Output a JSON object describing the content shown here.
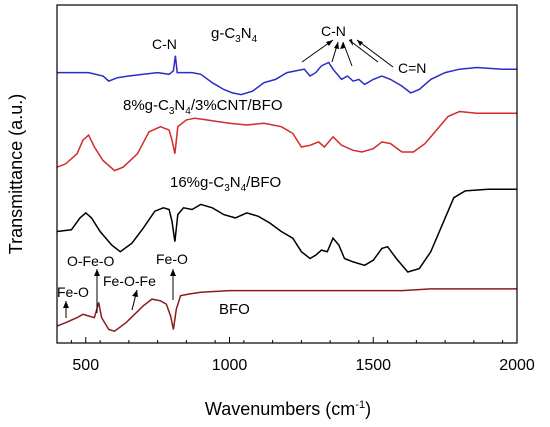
{
  "chart_data": {
    "type": "line",
    "xlabel": "Wavenumbers (cm",
    "xlabel_sup": "-1",
    "xlabel_tail": ")",
    "ylabel": "Transmittance (a.u.)",
    "xlim": [
      400,
      2000
    ],
    "x_ticks": [
      500,
      1000,
      1500,
      2000
    ],
    "x_tick_labels": [
      "500",
      "1000",
      "1500",
      "2000"
    ],
    "y_ticks_shown": false,
    "grid": false,
    "series": [
      {
        "name_parts": [
          [
            "g-C",
            false
          ],
          [
            "3",
            true
          ],
          [
            "N",
            false
          ],
          [
            "4",
            true
          ]
        ],
        "color": "#2b2bc8",
        "points": [
          [
            400,
            0.8
          ],
          [
            470,
            0.8
          ],
          [
            510,
            0.8
          ],
          [
            560,
            0.79
          ],
          [
            580,
            0.775
          ],
          [
            610,
            0.785
          ],
          [
            650,
            0.79
          ],
          [
            700,
            0.795
          ],
          [
            750,
            0.8
          ],
          [
            790,
            0.795
          ],
          [
            805,
            0.805
          ],
          [
            812,
            0.85
          ],
          [
            818,
            0.8
          ],
          [
            830,
            0.8
          ],
          [
            870,
            0.8
          ],
          [
            900,
            0.795
          ],
          [
            940,
            0.77
          ],
          [
            980,
            0.75
          ],
          [
            1010,
            0.74
          ],
          [
            1040,
            0.735
          ],
          [
            1080,
            0.745
          ],
          [
            1120,
            0.77
          ],
          [
            1160,
            0.78
          ],
          [
            1200,
            0.8
          ],
          [
            1230,
            0.805
          ],
          [
            1260,
            0.81
          ],
          [
            1280,
            0.79
          ],
          [
            1300,
            0.8
          ],
          [
            1320,
            0.82
          ],
          [
            1345,
            0.83
          ],
          [
            1360,
            0.81
          ],
          [
            1390,
            0.78
          ],
          [
            1410,
            0.79
          ],
          [
            1430,
            0.775
          ],
          [
            1450,
            0.78
          ],
          [
            1470,
            0.765
          ],
          [
            1500,
            0.78
          ],
          [
            1530,
            0.79
          ],
          [
            1560,
            0.78
          ],
          [
            1600,
            0.76
          ],
          [
            1630,
            0.74
          ],
          [
            1660,
            0.75
          ],
          [
            1700,
            0.78
          ],
          [
            1750,
            0.8
          ],
          [
            1800,
            0.81
          ],
          [
            1860,
            0.815
          ],
          [
            1950,
            0.81
          ],
          [
            2000,
            0.81
          ]
        ]
      },
      {
        "name_parts": [
          [
            "8%g-C",
            false
          ],
          [
            "3",
            true
          ],
          [
            "N",
            false
          ],
          [
            "4",
            true
          ],
          [
            "/3%CNT/BFO",
            false
          ]
        ],
        "color": "#d42a2a",
        "points": [
          [
            400,
            0.52
          ],
          [
            430,
            0.53
          ],
          [
            470,
            0.56
          ],
          [
            490,
            0.6
          ],
          [
            510,
            0.615
          ],
          [
            530,
            0.58
          ],
          [
            560,
            0.54
          ],
          [
            600,
            0.51
          ],
          [
            630,
            0.52
          ],
          [
            680,
            0.56
          ],
          [
            720,
            0.625
          ],
          [
            760,
            0.64
          ],
          [
            790,
            0.63
          ],
          [
            800,
            0.6
          ],
          [
            810,
            0.56
          ],
          [
            820,
            0.64
          ],
          [
            850,
            0.66
          ],
          [
            880,
            0.665
          ],
          [
            920,
            0.66
          ],
          [
            960,
            0.655
          ],
          [
            1000,
            0.65
          ],
          [
            1060,
            0.645
          ],
          [
            1120,
            0.65
          ],
          [
            1180,
            0.64
          ],
          [
            1220,
            0.62
          ],
          [
            1250,
            0.58
          ],
          [
            1280,
            0.585
          ],
          [
            1310,
            0.595
          ],
          [
            1330,
            0.58
          ],
          [
            1360,
            0.61
          ],
          [
            1390,
            0.585
          ],
          [
            1430,
            0.57
          ],
          [
            1460,
            0.565
          ],
          [
            1500,
            0.575
          ],
          [
            1530,
            0.595
          ],
          [
            1560,
            0.59
          ],
          [
            1600,
            0.565
          ],
          [
            1640,
            0.565
          ],
          [
            1680,
            0.59
          ],
          [
            1720,
            0.63
          ],
          [
            1760,
            0.67
          ],
          [
            1800,
            0.685
          ],
          [
            1860,
            0.68
          ],
          [
            1950,
            0.68
          ],
          [
            2000,
            0.68
          ]
        ]
      },
      {
        "name_parts": [
          [
            "16%g-C",
            false
          ],
          [
            "3",
            true
          ],
          [
            "N",
            false
          ],
          [
            "4",
            true
          ],
          [
            "/BFO",
            false
          ]
        ],
        "color": "#000000",
        "points": [
          [
            400,
            0.33
          ],
          [
            450,
            0.335
          ],
          [
            480,
            0.37
          ],
          [
            500,
            0.385
          ],
          [
            520,
            0.37
          ],
          [
            550,
            0.33
          ],
          [
            590,
            0.29
          ],
          [
            620,
            0.27
          ],
          [
            660,
            0.295
          ],
          [
            700,
            0.34
          ],
          [
            740,
            0.39
          ],
          [
            770,
            0.4
          ],
          [
            790,
            0.395
          ],
          [
            800,
            0.36
          ],
          [
            810,
            0.3
          ],
          [
            820,
            0.38
          ],
          [
            840,
            0.4
          ],
          [
            870,
            0.395
          ],
          [
            900,
            0.41
          ],
          [
            940,
            0.4
          ],
          [
            980,
            0.38
          ],
          [
            1020,
            0.37
          ],
          [
            1060,
            0.385
          ],
          [
            1100,
            0.375
          ],
          [
            1140,
            0.355
          ],
          [
            1180,
            0.33
          ],
          [
            1220,
            0.31
          ],
          [
            1250,
            0.27
          ],
          [
            1280,
            0.25
          ],
          [
            1300,
            0.26
          ],
          [
            1320,
            0.275
          ],
          [
            1340,
            0.27
          ],
          [
            1360,
            0.31
          ],
          [
            1380,
            0.29
          ],
          [
            1400,
            0.25
          ],
          [
            1430,
            0.24
          ],
          [
            1470,
            0.23
          ],
          [
            1500,
            0.245
          ],
          [
            1530,
            0.28
          ],
          [
            1550,
            0.285
          ],
          [
            1580,
            0.25
          ],
          [
            1620,
            0.21
          ],
          [
            1660,
            0.22
          ],
          [
            1700,
            0.27
          ],
          [
            1740,
            0.35
          ],
          [
            1780,
            0.43
          ],
          [
            1820,
            0.45
          ],
          [
            1900,
            0.455
          ],
          [
            2000,
            0.455
          ]
        ]
      },
      {
        "name_parts": [
          [
            "BFO",
            false
          ]
        ],
        "color": "#8b1c1c",
        "points": [
          [
            400,
            0.05
          ],
          [
            430,
            0.06
          ],
          [
            470,
            0.075
          ],
          [
            490,
            0.085
          ],
          [
            510,
            0.08
          ],
          [
            530,
            0.075
          ],
          [
            545,
            0.12
          ],
          [
            555,
            0.075
          ],
          [
            580,
            0.04
          ],
          [
            600,
            0.035
          ],
          [
            640,
            0.06
          ],
          [
            700,
            0.11
          ],
          [
            730,
            0.13
          ],
          [
            760,
            0.125
          ],
          [
            780,
            0.115
          ],
          [
            795,
            0.08
          ],
          [
            805,
            0.04
          ],
          [
            815,
            0.1
          ],
          [
            830,
            0.14
          ],
          [
            860,
            0.145
          ],
          [
            900,
            0.15
          ],
          [
            1000,
            0.155
          ],
          [
            1100,
            0.155
          ],
          [
            1200,
            0.155
          ],
          [
            1300,
            0.155
          ],
          [
            1400,
            0.155
          ],
          [
            1500,
            0.155
          ],
          [
            1600,
            0.155
          ],
          [
            1700,
            0.16
          ],
          [
            1800,
            0.16
          ],
          [
            1900,
            0.16
          ],
          [
            2000,
            0.16
          ]
        ]
      }
    ],
    "annotations": {
      "gcn_cn_left": "C-N",
      "gcn_cn_right": "C-N",
      "gcn_ceqn": "C=N",
      "bfo_feo_left": "Fe-O",
      "bfo_ofeo": "O-Fe-O",
      "bfo_feofe": "Fe-O-Fe",
      "bfo_feo_right": "Fe-O"
    }
  }
}
